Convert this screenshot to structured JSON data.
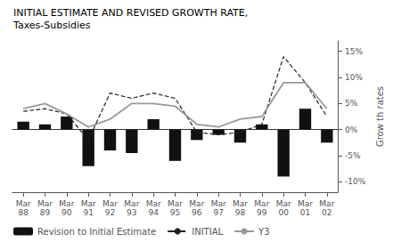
{
  "chart_data": {
    "type": "bar",
    "title": "INITIAL ESTIMATE AND REVISED GROWTH RATE,",
    "subtitle": "Taxes-Subsidies",
    "ylabel": "Grow th rates",
    "categories": [
      "Mar\n88",
      "Mar\n89",
      "Mar\n90",
      "Mar\n91",
      "Mar\n92",
      "Mar\n93",
      "Mar\n94",
      "Mar\n95",
      "Mar\n96",
      "Mar\n97",
      "Mar\n98",
      "Mar\n99",
      "Mar\n00",
      "Mar\n01",
      "Mar\n02"
    ],
    "series": [
      {
        "name": "Revision to Initial Estimate",
        "type": "bar",
        "color": "#111111",
        "values": [
          0.015,
          0.01,
          0.025,
          -0.07,
          -0.04,
          -0.045,
          0.02,
          -0.06,
          -0.02,
          -0.01,
          -0.025,
          0.01,
          -0.09,
          0.04,
          -0.025
        ]
      },
      {
        "name": "INITIAL",
        "type": "line",
        "color": "#222222",
        "line_style": "dashed",
        "values": [
          0.035,
          0.04,
          0.03,
          -0.02,
          0.07,
          0.06,
          0.07,
          0.06,
          -0.005,
          -0.01,
          -0.005,
          0.01,
          0.14,
          0.09,
          0.025
        ]
      },
      {
        "name": "Y3",
        "type": "line",
        "color": "#999999",
        "line_style": "solid",
        "values": [
          0.04,
          0.05,
          0.03,
          0.005,
          0.02,
          0.05,
          0.05,
          0.045,
          0.01,
          0.005,
          0.02,
          0.025,
          0.09,
          0.09,
          0.04
        ]
      }
    ],
    "ylim": [
      -0.12,
      0.17
    ],
    "yticks": [
      {
        "value": -0.1,
        "label": "-10%"
      },
      {
        "value": -0.05,
        "label": "-5%"
      },
      {
        "value": 0.0,
        "label": "0%"
      },
      {
        "value": 0.05,
        "label": "5%"
      },
      {
        "value": 0.1,
        "label": "10%"
      },
      {
        "value": 0.15,
        "label": "15%"
      }
    ],
    "grid": false,
    "legend": "lower left"
  }
}
